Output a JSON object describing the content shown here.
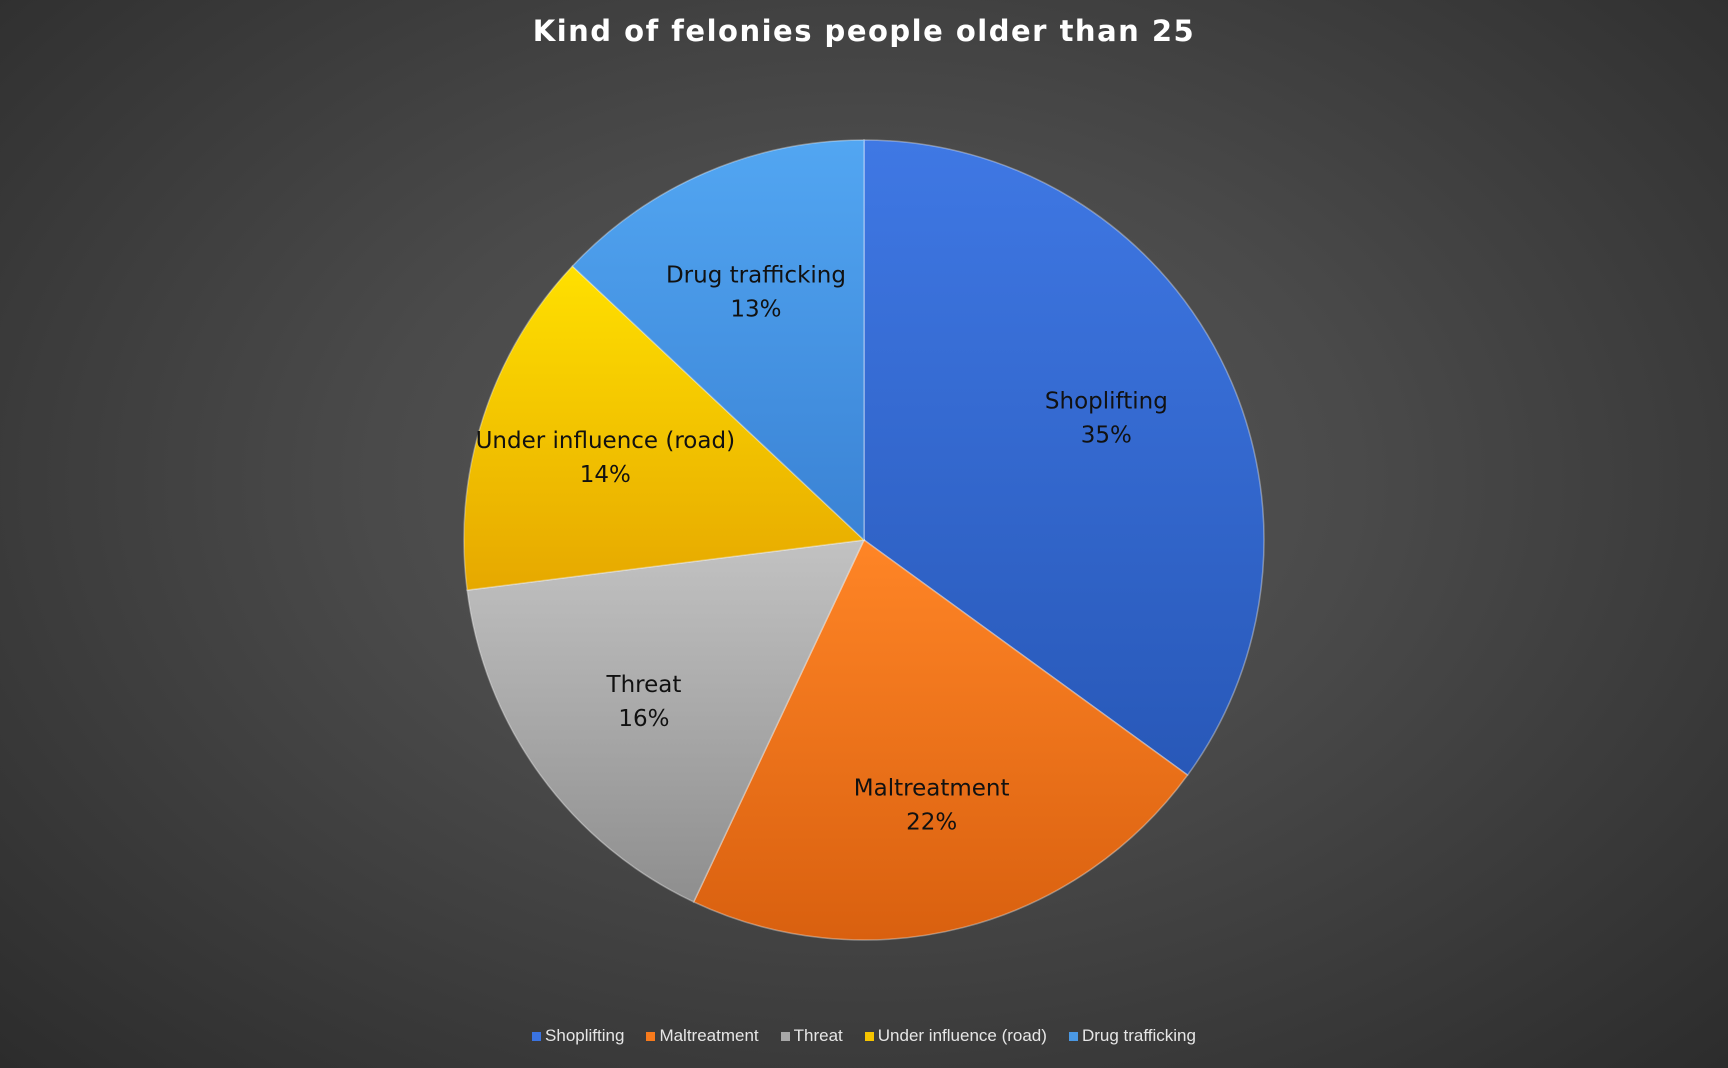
{
  "chart_data": {
    "type": "pie",
    "title": "Kind of felonies people older than 25",
    "legend_position": "bottom",
    "slices": [
      {
        "name": "Shoplifting",
        "value": 35,
        "label": "35%",
        "color": "#3a73e0"
      },
      {
        "name": "Maltreatment",
        "value": 22,
        "label": "22%",
        "color": "#f77a1c"
      },
      {
        "name": "Threat",
        "value": 16,
        "label": "16%",
        "color": "#a8a8a8"
      },
      {
        "name": "Under influence (road)",
        "value": 14,
        "label": "14%",
        "color": "#f6c400"
      },
      {
        "name": "Drug trafficking",
        "value": 13,
        "label": "13%",
        "color": "#4a98e4"
      }
    ]
  }
}
